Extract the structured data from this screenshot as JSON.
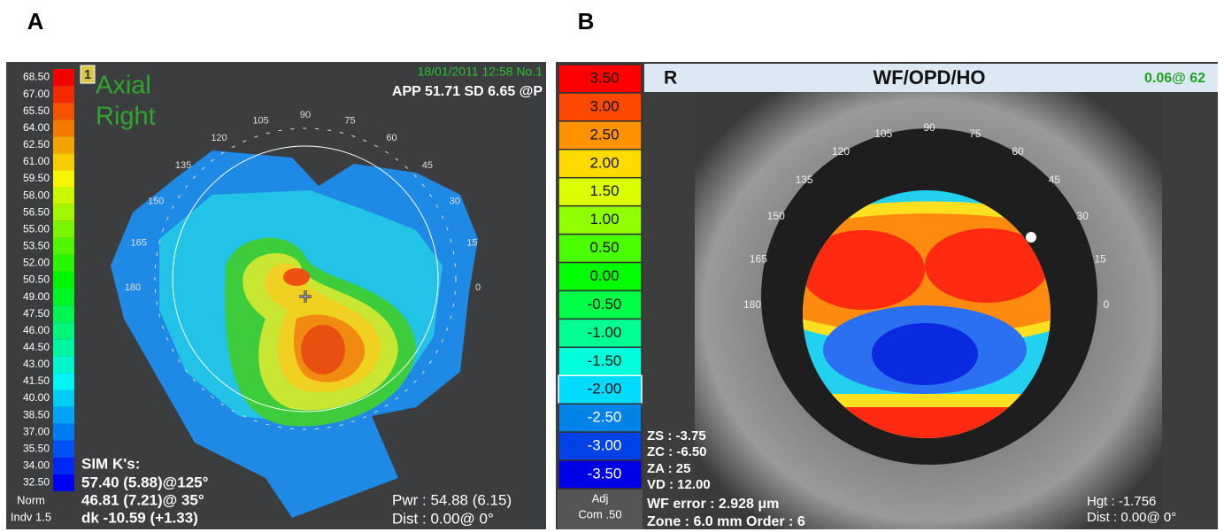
{
  "panel_a": {
    "label": "A",
    "scale": [
      "68.50",
      "67.00",
      "65.50",
      "64.00",
      "62.50",
      "61.00",
      "59.50",
      "58.00",
      "56.50",
      "55.00",
      "53.50",
      "52.00",
      "50.50",
      "49.00",
      "47.50",
      "46.00",
      "44.50",
      "43.00",
      "41.50",
      "40.00",
      "38.50",
      "37.00",
      "35.50",
      "34.00",
      "32.50"
    ],
    "scale_footer": [
      "Norm",
      "Indv 1.5"
    ],
    "badge": "1",
    "title": [
      "Axial",
      "Right"
    ],
    "date": "18/01/2011 12:58 No.1",
    "app": "APP 51.71 SD 6.65  @P",
    "angles": [
      "90",
      "105",
      "75",
      "120",
      "60",
      "135",
      "45",
      "150",
      "30",
      "165",
      "15",
      "180",
      "0"
    ],
    "sim_k": [
      "SIM K's:",
      "57.40 (5.88)@125°",
      "46.81 (7.21)@ 35°",
      "dk -10.59 (+1.33)"
    ],
    "pwr": "Pwr : 54.88 (6.15)",
    "dist": "Dist : 0.00@  0°"
  },
  "panel_b": {
    "label": "B",
    "scale": [
      "3.50",
      "3.00",
      "2.50",
      "2.00",
      "1.50",
      "1.00",
      "0.50",
      "0.00",
      "-0.50",
      "-1.00",
      "-1.50",
      "-2.00",
      "-2.50",
      "-3.00",
      "-3.50"
    ],
    "scale_footer": [
      "Adj",
      "Com .50"
    ],
    "header": {
      "eye": "R",
      "title": "WF/OPD/HO",
      "value": "0.06@ 62"
    },
    "angles": [
      "90",
      "105",
      "75",
      "120",
      "60",
      "135",
      "45",
      "150",
      "30",
      "165",
      "15",
      "180",
      "0"
    ],
    "params": [
      "ZS :  -3.75",
      "ZC :  -6.50",
      "ZA :  25",
      "VD : 12.00"
    ],
    "wf_error": "WF error :  2.928 μm",
    "zone": "Zone : 6.0 mm Order  :  6",
    "hgt": "Hgt : -1.756",
    "dist": "Dist :  0.00@  0°"
  }
}
